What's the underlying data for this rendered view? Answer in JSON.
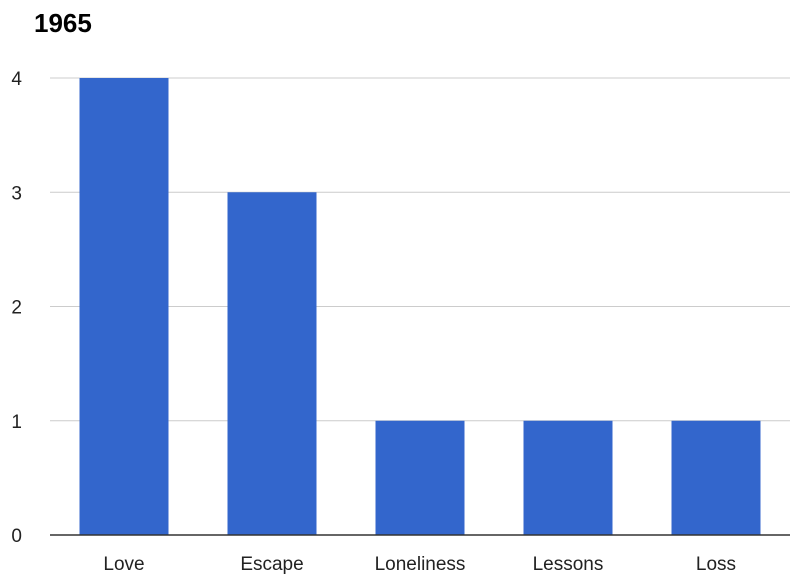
{
  "chart_data": {
    "type": "bar",
    "title": "1965",
    "xlabel": "",
    "ylabel": "",
    "categories": [
      "Love",
      "Escape",
      "Loneliness",
      "Lessons",
      "Loss"
    ],
    "values": [
      4,
      3,
      1,
      1,
      1
    ],
    "ylim": [
      0,
      4
    ],
    "yticks": [
      0,
      1,
      2,
      3,
      4
    ],
    "grid": true,
    "legend": "none",
    "colors": {
      "bar": "#3366cc",
      "grid": "#cccccc",
      "axis": "#333333",
      "text": "#222222"
    }
  }
}
